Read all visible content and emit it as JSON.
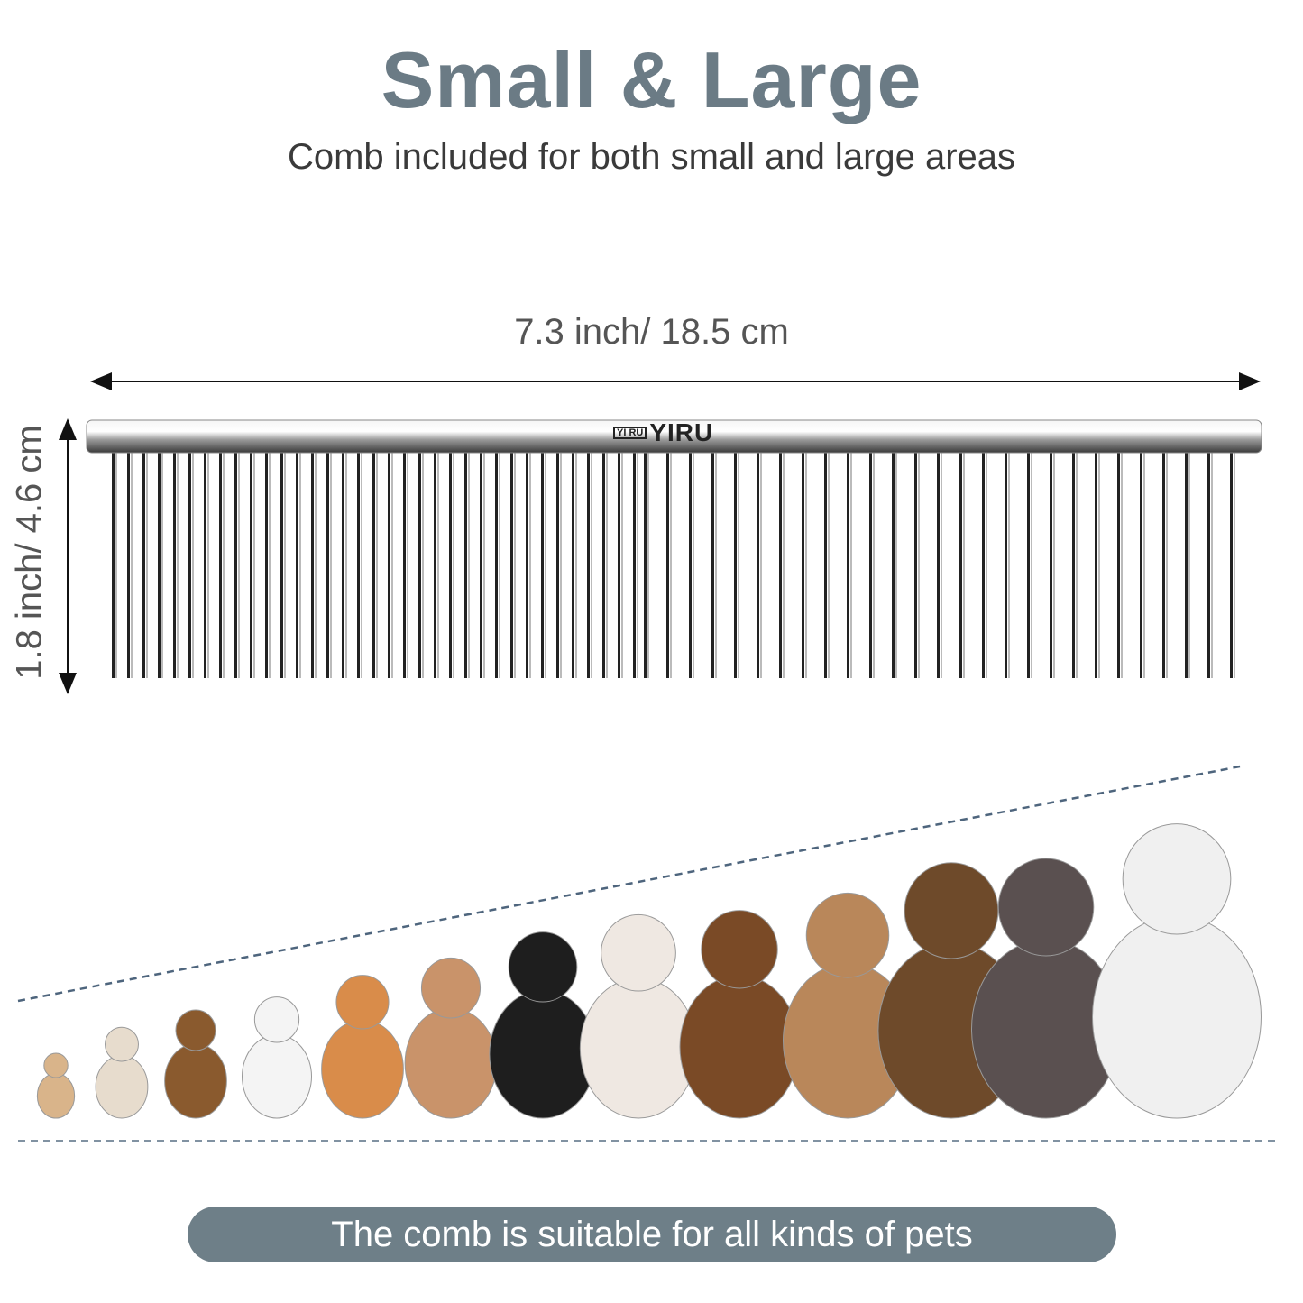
{
  "header": {
    "title": "Small & Large",
    "subtitle": "Comb included for both small and large areas"
  },
  "dimensions": {
    "width": "7.3 inch/ 18.5 cm",
    "height": "1.8 inch/ 4.6 cm"
  },
  "comb": {
    "brand_box": "YI RU",
    "brand": "YIRU"
  },
  "colors": {
    "accent": "#6e7f88",
    "title": "#6b7b85",
    "dashed_line": "#2f4a66"
  },
  "footer": {
    "banner": "The comb is suitable for all kinds of pets"
  }
}
